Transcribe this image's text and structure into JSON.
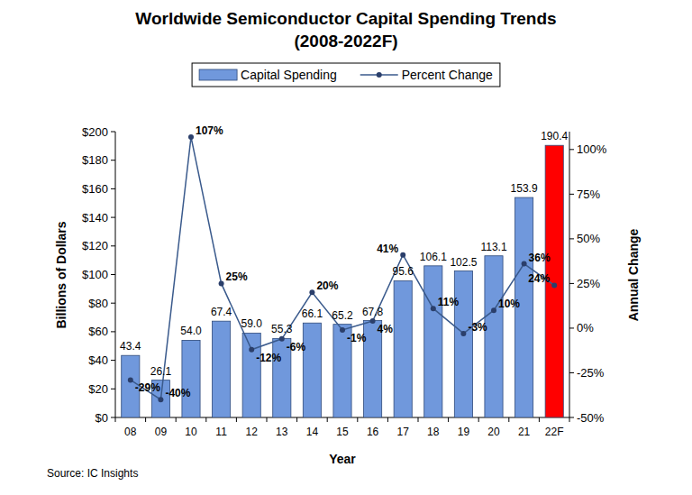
{
  "chart_data": {
    "type": "bar",
    "title": "Worldwide Semiconductor Capital Spending Trends",
    "subtitle": "(2008-2022F)",
    "x_label": "Year",
    "y_label": "Billions of Dollars",
    "y2_label": "Annual Change",
    "annotations": [
      "Source: IC Insights"
    ],
    "categories": [
      "08",
      "09",
      "10",
      "11",
      "12",
      "13",
      "14",
      "15",
      "16",
      "17",
      "18",
      "19",
      "20",
      "21",
      "22F"
    ],
    "series": [
      {
        "name": "Capital Spending",
        "type": "bar",
        "colors": [
          "#7098dc",
          "#7098dc",
          "#7098dc",
          "#7098dc",
          "#7098dc",
          "#7098dc",
          "#7098dc",
          "#7098dc",
          "#7098dc",
          "#7098dc",
          "#7098dc",
          "#7098dc",
          "#7098dc",
          "#7098dc",
          "#ff0000"
        ],
        "values": [
          43.4,
          26.1,
          54.0,
          67.4,
          59.0,
          55.3,
          66.1,
          65.2,
          67.8,
          95.6,
          106.1,
          102.5,
          113.1,
          153.9,
          190.4
        ],
        "value_labels": [
          "43.4",
          "26.1",
          "54.0",
          "67.4",
          "59.0",
          "55.3",
          "66.1",
          "65.2",
          "67.8",
          "95.6",
          "106.1",
          "102.5",
          "113.1",
          "153.9",
          "190.4"
        ]
      },
      {
        "name": "Percent Change",
        "type": "line",
        "axis": "y2",
        "color": "#3a5a8c",
        "marker": "circle",
        "line_style": "solid",
        "values": [
          -29,
          -40,
          107,
          25,
          -12,
          -6,
          20,
          -1,
          4,
          41,
          11,
          -3,
          10,
          36,
          24
        ],
        "value_labels": [
          "-29%",
          "-40%",
          "107%",
          "25%",
          "-12%",
          "-6%",
          "20%",
          "-1%",
          "4%",
          "41%",
          "11%",
          "-3%",
          "10%",
          "36%",
          "24%"
        ]
      }
    ],
    "ylim": [
      0,
      200
    ],
    "yticks": [
      {
        "value": 0,
        "label": "$0"
      },
      {
        "value": 20,
        "label": "$20"
      },
      {
        "value": 40,
        "label": "$40"
      },
      {
        "value": 60,
        "label": "$60"
      },
      {
        "value": 80,
        "label": "$80"
      },
      {
        "value": 100,
        "label": "$100"
      },
      {
        "value": 120,
        "label": "$120"
      },
      {
        "value": 140,
        "label": "$140"
      },
      {
        "value": 160,
        "label": "$160"
      },
      {
        "value": 180,
        "label": "$180"
      },
      {
        "value": 200,
        "label": "$200"
      }
    ],
    "y2lim": [
      -50,
      110
    ],
    "y2ticks": [
      {
        "value": -50,
        "label": "-50%"
      },
      {
        "value": -25,
        "label": "-25%"
      },
      {
        "value": 0,
        "label": "0%"
      },
      {
        "value": 25,
        "label": "25%"
      },
      {
        "value": 50,
        "label": "50%"
      },
      {
        "value": 75,
        "label": "75%"
      },
      {
        "value": 100,
        "label": "100%"
      }
    ],
    "grid": false,
    "legend": "top",
    "data_labels": true
  }
}
